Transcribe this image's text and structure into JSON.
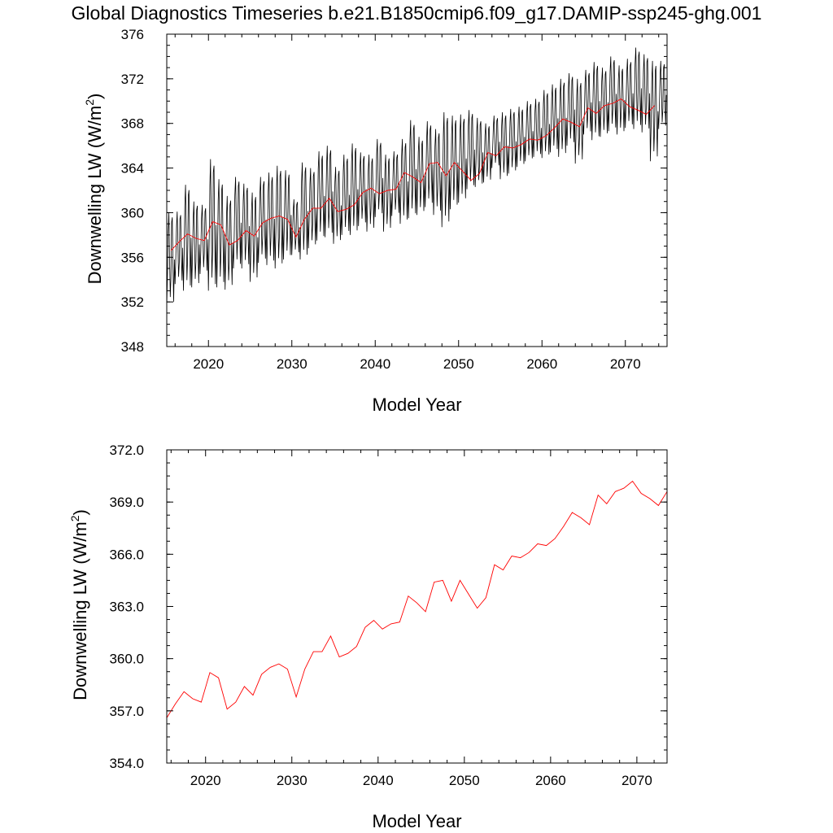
{
  "figure": {
    "title": "Global Diagnostics Timeseries b.e21.B1850cmip6.f09_g17.DAMIP-ssp245-ghg.001"
  },
  "colors": {
    "monthly_line": "#000000",
    "annual_line": "#ff0000"
  },
  "chart_data": [
    {
      "type": "line",
      "xlabel": "Model Year",
      "ylabel_main": "Downwelling LW (W/m",
      "ylabel_sup": "2",
      "ylabel_close": ")",
      "xlim": [
        2015,
        2075
      ],
      "ylim": [
        348,
        376
      ],
      "xticks": [
        2020,
        2030,
        2040,
        2050,
        2060,
        2070
      ],
      "xtick_labels": [
        "2020",
        "2030",
        "2040",
        "2050",
        "2060",
        "2070"
      ],
      "yticks": [
        348,
        352,
        356,
        360,
        364,
        368,
        372,
        376
      ],
      "ytick_labels": [
        "348",
        "352",
        "356",
        "360",
        "364",
        "368",
        "372",
        "376"
      ],
      "series": [
        {
          "kind": "monthly",
          "color": "#000000",
          "x_start": 2015.0,
          "x_step": 0.0833333,
          "annual_min": [
            351.6,
            353.6,
            353.0,
            353.3,
            354.5,
            353.0,
            353.3,
            353.1,
            355.0,
            355.0,
            353.8,
            355.5,
            355.3,
            355.0,
            355.8,
            356.2,
            355.8,
            356.8,
            357.5,
            357.8,
            357.2,
            358.0,
            358.0,
            358.8,
            358.3,
            359.6,
            358.3,
            359.7,
            359.0,
            359.5,
            359.8,
            360.5,
            359.8,
            358.7,
            360.3,
            360.9,
            362.1,
            362.3,
            362.7,
            364.0,
            363.0,
            363.5,
            364.1,
            364.6,
            365.0,
            364.9,
            365.4,
            365.0,
            366.0,
            364.4,
            367.0,
            366.5,
            366.8,
            367.3,
            367.0,
            367.6,
            367.5,
            367.2,
            364.6,
            367.5
          ],
          "annual_max": [
            360.0,
            360.1,
            362.5,
            361.0,
            360.7,
            364.8,
            363.0,
            361.5,
            363.2,
            362.6,
            361.8,
            363.2,
            363.6,
            364.2,
            363.8,
            361.2,
            364.5,
            364.0,
            365.5,
            366.0,
            364.1,
            365.2,
            366.2,
            365.4,
            365.2,
            366.6,
            365.2,
            365.5,
            366.6,
            368.3,
            366.8,
            368.2,
            367.5,
            369.0,
            368.7,
            368.8,
            369.2,
            368.5,
            368.0,
            368.7,
            369.0,
            369.3,
            369.5,
            370.0,
            370.2,
            371.0,
            371.5,
            372.0,
            372.5,
            372.0,
            372.8,
            373.5,
            373.0,
            374.0,
            373.2,
            373.8,
            374.8,
            374.2,
            373.6,
            373.6
          ]
        },
        {
          "kind": "annual",
          "color": "#ff0000",
          "x": [
            2015.5,
            2016.5,
            2017.5,
            2018.5,
            2019.5,
            2020.5,
            2021.5,
            2022.5,
            2023.5,
            2024.5,
            2025.5,
            2026.5,
            2027.5,
            2028.5,
            2029.5,
            2030.5,
            2031.5,
            2032.5,
            2033.5,
            2034.5,
            2035.5,
            2036.5,
            2037.5,
            2038.5,
            2039.5,
            2040.5,
            2041.5,
            2042.5,
            2043.5,
            2044.5,
            2045.5,
            2046.5,
            2047.5,
            2048.5,
            2049.5,
            2050.5,
            2051.5,
            2052.5,
            2053.5,
            2054.5,
            2055.5,
            2056.5,
            2057.5,
            2058.5,
            2059.5,
            2060.5,
            2061.5,
            2062.5,
            2063.5,
            2064.5,
            2065.5,
            2066.5,
            2067.5,
            2068.5,
            2069.5,
            2070.5,
            2071.5,
            2072.5,
            2073.5
          ],
          "values": [
            356.6,
            357.4,
            358.1,
            357.7,
            357.5,
            359.2,
            358.9,
            357.1,
            357.5,
            358.4,
            357.9,
            359.1,
            359.5,
            359.7,
            359.4,
            357.8,
            359.4,
            360.4,
            360.4,
            361.3,
            360.1,
            360.3,
            360.7,
            361.8,
            362.2,
            361.7,
            362.0,
            362.1,
            363.6,
            363.2,
            362.7,
            364.4,
            364.5,
            363.3,
            364.5,
            363.7,
            362.9,
            363.5,
            365.4,
            365.1,
            365.9,
            365.8,
            366.1,
            366.6,
            366.5,
            366.9,
            367.6,
            368.4,
            368.1,
            367.7,
            369.4,
            368.9,
            369.6,
            369.8,
            370.2,
            369.5,
            369.2,
            368.8,
            369.6
          ]
        }
      ]
    },
    {
      "type": "line",
      "xlabel": "Model Year",
      "ylabel_main": "Downwelling LW (W/m",
      "ylabel_sup": "2",
      "ylabel_close": ")",
      "xlim": [
        2015.5,
        2073.5
      ],
      "ylim": [
        354,
        372
      ],
      "xticks": [
        2020,
        2030,
        2040,
        2050,
        2060,
        2070
      ],
      "xtick_labels": [
        "2020",
        "2030",
        "2040",
        "2050",
        "2060",
        "2070"
      ],
      "yticks": [
        354,
        357,
        360,
        363,
        366,
        369,
        372
      ],
      "ytick_labels": [
        "354.0",
        "357.0",
        "360.0",
        "363.0",
        "366.0",
        "369.0",
        "372.0"
      ],
      "series": [
        {
          "kind": "annual",
          "color": "#ff0000",
          "x": [
            2015.5,
            2016.5,
            2017.5,
            2018.5,
            2019.5,
            2020.5,
            2021.5,
            2022.5,
            2023.5,
            2024.5,
            2025.5,
            2026.5,
            2027.5,
            2028.5,
            2029.5,
            2030.5,
            2031.5,
            2032.5,
            2033.5,
            2034.5,
            2035.5,
            2036.5,
            2037.5,
            2038.5,
            2039.5,
            2040.5,
            2041.5,
            2042.5,
            2043.5,
            2044.5,
            2045.5,
            2046.5,
            2047.5,
            2048.5,
            2049.5,
            2050.5,
            2051.5,
            2052.5,
            2053.5,
            2054.5,
            2055.5,
            2056.5,
            2057.5,
            2058.5,
            2059.5,
            2060.5,
            2061.5,
            2062.5,
            2063.5,
            2064.5,
            2065.5,
            2066.5,
            2067.5,
            2068.5,
            2069.5,
            2070.5,
            2071.5,
            2072.5,
            2073.5
          ],
          "values": [
            356.6,
            357.4,
            358.1,
            357.7,
            357.5,
            359.2,
            358.9,
            357.1,
            357.5,
            358.4,
            357.9,
            359.1,
            359.5,
            359.7,
            359.4,
            357.8,
            359.4,
            360.4,
            360.4,
            361.3,
            360.1,
            360.3,
            360.7,
            361.8,
            362.2,
            361.7,
            362.0,
            362.1,
            363.6,
            363.2,
            362.7,
            364.4,
            364.5,
            363.3,
            364.5,
            363.7,
            362.9,
            363.5,
            365.4,
            365.1,
            365.9,
            365.8,
            366.1,
            366.6,
            366.5,
            366.9,
            367.6,
            368.4,
            368.1,
            367.7,
            369.4,
            368.9,
            369.6,
            369.8,
            370.2,
            369.5,
            369.2,
            368.8,
            369.6
          ]
        }
      ]
    }
  ]
}
